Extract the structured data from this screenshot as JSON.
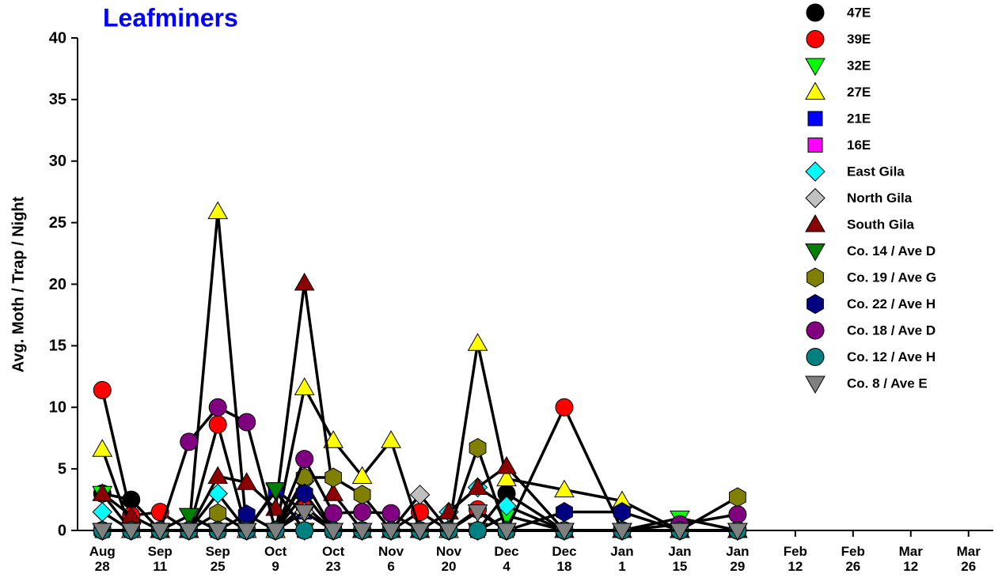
{
  "chart_data": {
    "type": "line",
    "title": "Leafminers",
    "ylabel": "Avg. Moth / Trap / Night",
    "x": [
      0,
      7,
      14,
      21,
      28,
      35,
      42,
      49,
      56,
      63,
      70,
      77,
      84,
      91,
      98,
      112,
      126,
      140,
      154
    ],
    "xlim": [
      -6,
      216
    ],
    "xticks": [
      {
        "value": 0,
        "label": "Aug 28"
      },
      {
        "value": 14,
        "label": "Sep 11"
      },
      {
        "value": 28,
        "label": "Sep 25"
      },
      {
        "value": 42,
        "label": "Oct 9"
      },
      {
        "value": 56,
        "label": "Oct 23"
      },
      {
        "value": 70,
        "label": "Nov 6"
      },
      {
        "value": 84,
        "label": "Nov 20"
      },
      {
        "value": 98,
        "label": "Dec 4"
      },
      {
        "value": 112,
        "label": "Dec 18"
      },
      {
        "value": 126,
        "label": "Jan 1"
      },
      {
        "value": 140,
        "label": "Jan 15"
      },
      {
        "value": 154,
        "label": "Jan 29"
      },
      {
        "value": 168,
        "label": "Feb 12"
      },
      {
        "value": 182,
        "label": "Feb 26"
      },
      {
        "value": 196,
        "label": "Mar 12"
      },
      {
        "value": 210,
        "label": "Mar 26"
      }
    ],
    "ylim": [
      0,
      40
    ],
    "yticks": [
      0,
      5,
      10,
      15,
      20,
      25,
      30,
      35,
      40
    ],
    "series": [
      {
        "name": "47E",
        "color": "#000000",
        "marker": "circle",
        "values": [
          3,
          2.5,
          0,
          0,
          0,
          0,
          0,
          0,
          0,
          0,
          0,
          0,
          0,
          0,
          3,
          0,
          0,
          0,
          0
        ]
      },
      {
        "name": "39E",
        "color": "#ff0000",
        "marker": "circle",
        "values": [
          11.4,
          1.2,
          1.5,
          0,
          8.6,
          0,
          0,
          2,
          0,
          0,
          0,
          1.5,
          0,
          1.7,
          0,
          10,
          0,
          0,
          0
        ]
      },
      {
        "name": "32E",
        "color": "#00ff00",
        "marker": "triangle-down",
        "values": [
          3,
          0,
          0,
          1.2,
          0,
          0,
          3.2,
          0,
          0,
          0,
          0,
          0,
          0,
          0,
          1.2,
          0,
          0,
          1,
          0
        ]
      },
      {
        "name": "27E",
        "color": "#ffff00",
        "marker": "triangle-up",
        "values": [
          6.6,
          0,
          0,
          0,
          25.9,
          0,
          0,
          11.6,
          7.3,
          4.4,
          7.3,
          0,
          0,
          15.2,
          4.2,
          3.3,
          2.4,
          0,
          0
        ]
      },
      {
        "name": "21E",
        "color": "#0000ff",
        "marker": "square",
        "values": [
          0,
          0,
          0,
          0,
          0,
          0,
          3.3,
          1.5,
          0,
          0,
          0,
          0,
          0,
          0,
          0,
          0,
          0,
          0,
          0
        ]
      },
      {
        "name": "16E",
        "color": "#ff00ff",
        "marker": "square",
        "values": [
          0,
          0,
          0,
          0,
          0,
          0,
          0,
          0,
          0,
          0,
          0,
          0,
          0,
          0,
          0,
          0,
          0,
          0,
          0
        ]
      },
      {
        "name": "East Gila",
        "color": "#00ffff",
        "marker": "diamond",
        "values": [
          1.5,
          0,
          0,
          0,
          3,
          0,
          0,
          4,
          0,
          0,
          0,
          0,
          1.5,
          3.5,
          2,
          0,
          0,
          0,
          0
        ]
      },
      {
        "name": "North Gila",
        "color": "#c0c0c0",
        "marker": "diamond",
        "values": [
          0,
          0,
          0,
          0,
          0,
          0,
          0,
          1.5,
          0,
          0,
          0,
          2.9,
          0,
          0,
          0,
          0,
          0,
          0,
          0
        ]
      },
      {
        "name": "South Gila",
        "color": "#8b0000",
        "marker": "triangle-up",
        "values": [
          3,
          1.2,
          0,
          0,
          4.4,
          3.9,
          1.8,
          20.1,
          3,
          0,
          0,
          0,
          1.5,
          3.5,
          5.2,
          0,
          0,
          0,
          0
        ]
      },
      {
        "name": "Co. 14 / Ave D",
        "color": "#007f00",
        "marker": "triangle-down",
        "values": [
          0,
          0,
          0,
          1.2,
          0,
          0,
          3.3,
          0,
          0,
          0,
          0,
          0,
          0,
          0,
          0,
          0,
          0,
          0,
          0
        ]
      },
      {
        "name": "Co. 19 / Ave G",
        "color": "#808000",
        "marker": "hexagon",
        "values": [
          0,
          0,
          0,
          0,
          1.4,
          0,
          0,
          4.3,
          4.3,
          2.9,
          0,
          0,
          0,
          6.7,
          0,
          0,
          0,
          0,
          2.7
        ]
      },
      {
        "name": "Co. 22 / Ave H",
        "color": "#000080",
        "marker": "hexagon",
        "values": [
          0,
          0,
          0,
          0,
          0,
          1.3,
          0,
          3,
          0,
          0,
          0,
          0,
          0,
          0,
          0,
          1.5,
          1.5,
          0,
          0
        ]
      },
      {
        "name": "Co. 18 / Ave D",
        "color": "#800080",
        "marker": "circle",
        "values": [
          0,
          0,
          0,
          7.2,
          10,
          8.8,
          0,
          5.8,
          1.4,
          1.5,
          1.4,
          0,
          0,
          0,
          0,
          0,
          0,
          0.5,
          1.3
        ]
      },
      {
        "name": "Co. 12 / Ave H",
        "color": "#008080",
        "marker": "circle",
        "values": [
          0,
          0,
          0,
          0,
          0,
          0,
          0,
          0,
          0,
          0,
          0,
          0,
          0,
          0,
          0,
          0,
          0,
          0,
          0
        ]
      },
      {
        "name": "Co. 8 / Ave E",
        "color": "#808080",
        "marker": "triangle-down",
        "values": [
          0,
          0,
          0,
          0,
          0,
          0,
          0,
          1.5,
          0,
          0,
          0,
          0,
          0,
          1.5,
          0,
          0,
          0,
          0,
          0
        ]
      }
    ]
  }
}
